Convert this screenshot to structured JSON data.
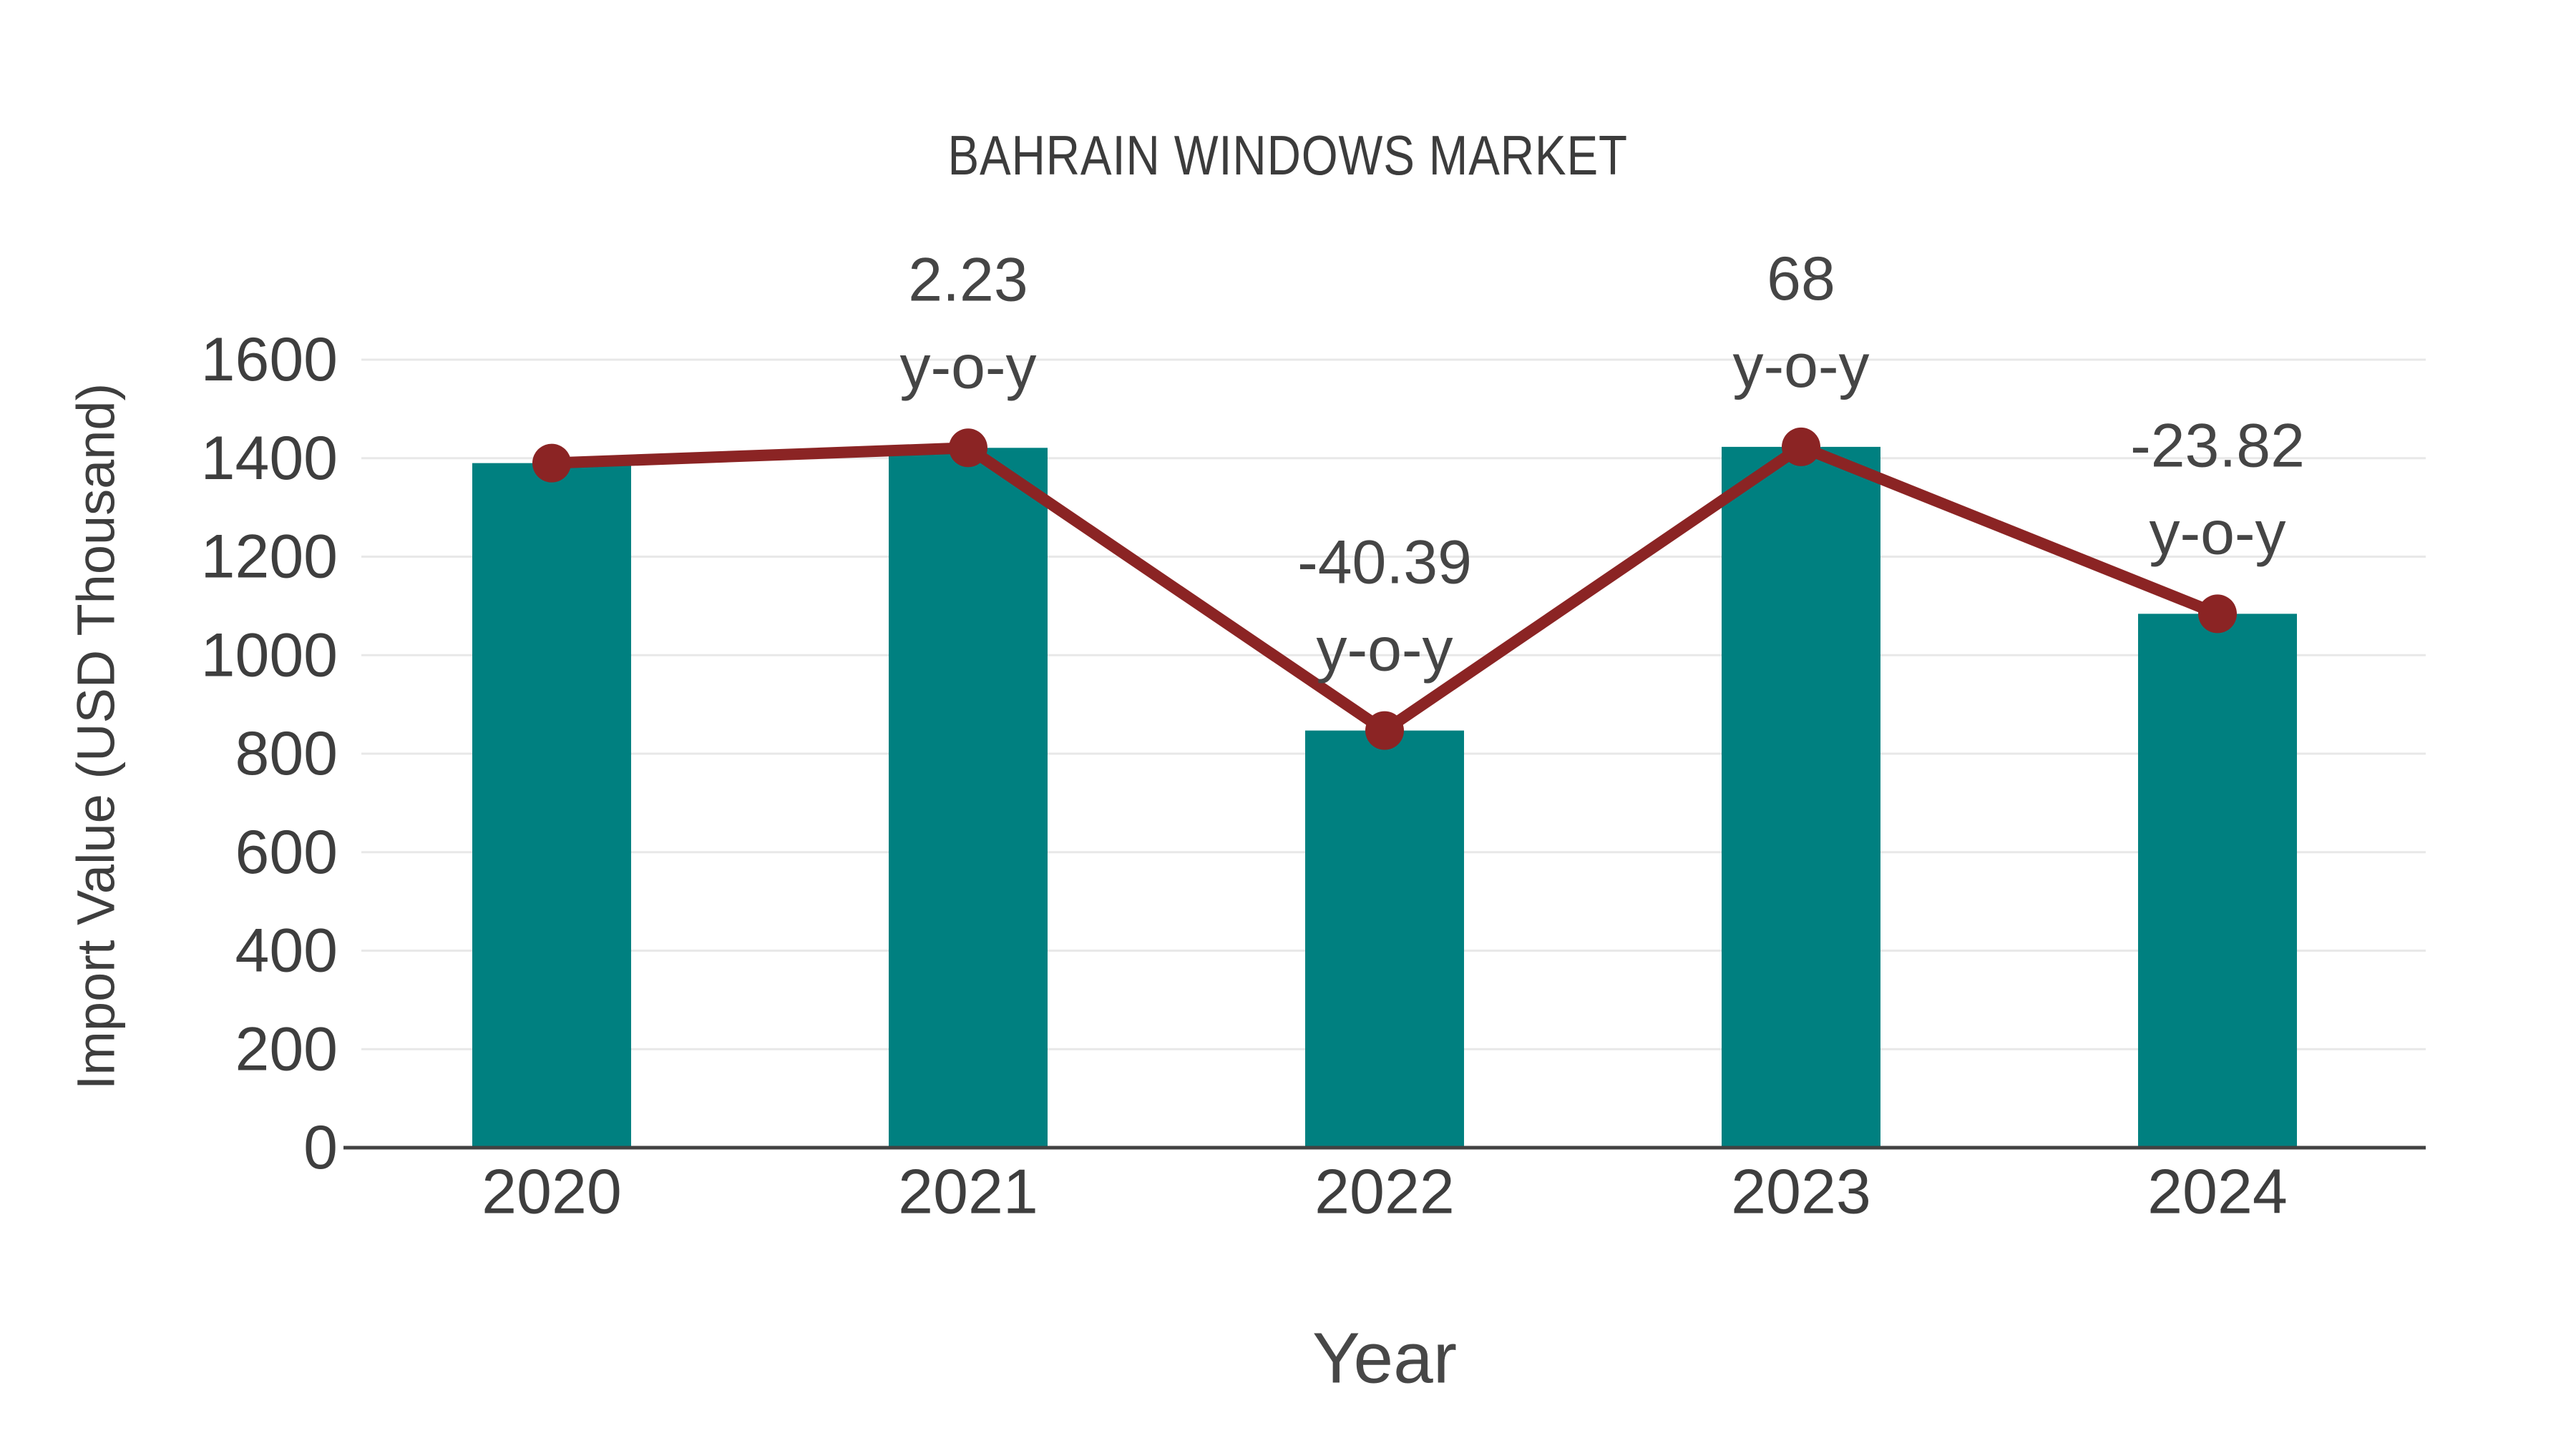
{
  "page": {
    "background": "#ffffff"
  },
  "chart_data": {
    "type": "bar",
    "title": "BAHRAIN WINDOWS MARKET",
    "xlabel": "Year",
    "ylabel": "Import Value (USD Thousand)",
    "categories": [
      "2020",
      "2021",
      "2022",
      "2023",
      "2024"
    ],
    "series": [
      {
        "name": "Import Value",
        "type": "bar",
        "color": "#008080",
        "values": [
          1390,
          1421,
          847,
          1423,
          1084
        ]
      },
      {
        "name": "y-o-y trend",
        "type": "line",
        "color": "#8B2424",
        "values": [
          1390,
          1421,
          847,
          1423,
          1084
        ]
      }
    ],
    "annotations": [
      {
        "category": "2021",
        "line1": "2.23",
        "line2": "y-o-y"
      },
      {
        "category": "2022",
        "line1": "-40.39",
        "line2": "y-o-y"
      },
      {
        "category": "2023",
        "line1": "68",
        "line2": "y-o-y"
      },
      {
        "category": "2024",
        "line1": "-23.82",
        "line2": "y-o-y"
      }
    ],
    "ylim": [
      0,
      1600
    ],
    "yticks": [
      0,
      200,
      400,
      600,
      800,
      1000,
      1200,
      1400,
      1600
    ],
    "grid": true,
    "legend": "none"
  },
  "colors": {
    "bar": "#008080",
    "line": "#8B2424",
    "grid": "#E8E8E8",
    "axis": "#424242",
    "tick_text": "#3E3E3E",
    "annotation_text": "#454545",
    "title_text": "#3C3C3C"
  }
}
